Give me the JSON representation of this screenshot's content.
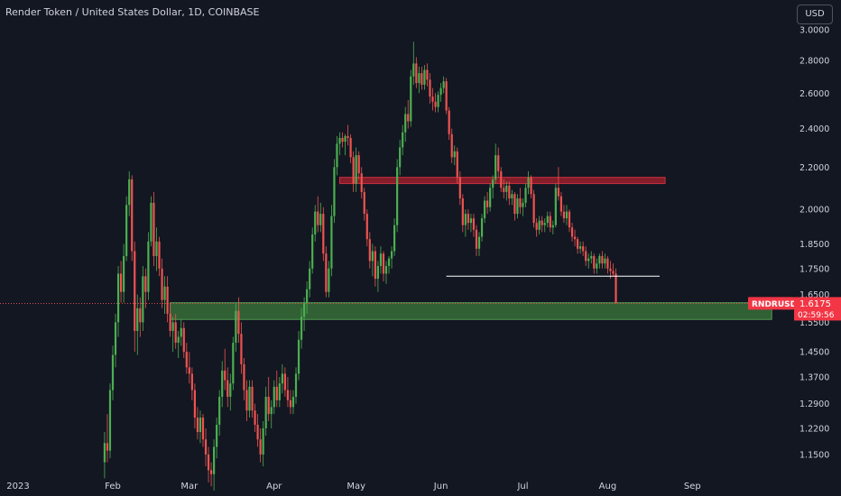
{
  "header": {
    "title": "Render Token / United States Dollar, 1D, COINBASE",
    "currency": "USD"
  },
  "colors": {
    "background": "#131722",
    "up": "#26a69a",
    "up_candle": "#4caf50",
    "down": "#ef5350",
    "resistance_zone": "#8b1e2b",
    "support_zone": "#3c7a3c",
    "trend_line": "#ffffff",
    "price_badge": "#f23645",
    "text": "#d1d4dc"
  },
  "price_badge": {
    "symbol": "RNDRUSD",
    "price": "1.6175",
    "countdown": "02:59:56"
  },
  "chart_data": {
    "type": "candlestick",
    "title": "Render Token / United States Dollar, 1D, COINBASE",
    "scale": "log",
    "ylim": [
      1.1,
      3.05
    ],
    "y_ticks": [
      "3.0000",
      "2.8000",
      "2.6000",
      "2.4000",
      "2.2000",
      "2.0000",
      "1.8500",
      "1.7500",
      "1.6500",
      "1.5500",
      "1.4500",
      "1.3700",
      "1.2900",
      "1.2200",
      "1.1500"
    ],
    "x_ticks": [
      "2023",
      "Feb",
      "Mar",
      "Apr",
      "May",
      "Jun",
      "Jul",
      "Aug",
      "Sep"
    ],
    "x_range": [
      "2023-01-20",
      "2023-09-30"
    ],
    "last_price": 1.6175,
    "annotations": [
      {
        "type": "zone",
        "role": "resistance",
        "y": [
          2.12,
          2.15
        ],
        "x": [
          "2023-04-25",
          "2023-08-22"
        ]
      },
      {
        "type": "zone",
        "role": "support",
        "y": [
          1.56,
          1.62
        ],
        "x": [
          "2023-02-22",
          "2023-09-30"
        ]
      },
      {
        "type": "hline",
        "role": "trend",
        "y": 1.72,
        "x": [
          "2023-06-03",
          "2023-08-20"
        ]
      }
    ],
    "candles": [
      [
        "2023-01-29",
        1.13,
        1.21,
        1.09,
        1.18
      ],
      [
        "2023-01-30",
        1.18,
        1.26,
        1.13,
        1.16
      ],
      [
        "2023-01-31",
        1.16,
        1.35,
        1.14,
        1.33
      ],
      [
        "2023-02-01",
        1.33,
        1.47,
        1.3,
        1.44
      ],
      [
        "2023-02-02",
        1.44,
        1.58,
        1.4,
        1.55
      ],
      [
        "2023-02-03",
        1.55,
        1.76,
        1.5,
        1.73
      ],
      [
        "2023-02-04",
        1.73,
        1.78,
        1.62,
        1.66
      ],
      [
        "2023-02-05",
        1.66,
        1.85,
        1.62,
        1.8
      ],
      [
        "2023-02-06",
        1.8,
        2.06,
        1.78,
        2.02
      ],
      [
        "2023-02-07",
        2.02,
        2.18,
        1.97,
        2.14
      ],
      [
        "2023-02-08",
        2.14,
        2.16,
        1.78,
        1.82
      ],
      [
        "2023-02-09",
        1.82,
        1.86,
        1.45,
        1.52
      ],
      [
        "2023-02-10",
        1.52,
        1.65,
        1.44,
        1.6
      ],
      [
        "2023-02-11",
        1.6,
        1.64,
        1.5,
        1.55
      ],
      [
        "2023-02-12",
        1.55,
        1.76,
        1.52,
        1.72
      ],
      [
        "2023-02-13",
        1.72,
        1.75,
        1.6,
        1.66
      ],
      [
        "2023-02-14",
        1.66,
        1.9,
        1.63,
        1.86
      ],
      [
        "2023-02-15",
        1.86,
        2.06,
        1.84,
        2.03
      ],
      [
        "2023-02-16",
        2.03,
        2.08,
        1.76,
        1.8
      ],
      [
        "2023-02-17",
        1.8,
        1.92,
        1.74,
        1.86
      ],
      [
        "2023-02-18",
        1.86,
        1.88,
        1.72,
        1.75
      ],
      [
        "2023-02-19",
        1.75,
        1.79,
        1.6,
        1.63
      ],
      [
        "2023-02-20",
        1.63,
        1.72,
        1.58,
        1.68
      ],
      [
        "2023-02-21",
        1.68,
        1.72,
        1.55,
        1.58
      ],
      [
        "2023-02-22",
        1.58,
        1.62,
        1.5,
        1.52
      ],
      [
        "2023-02-23",
        1.52,
        1.57,
        1.45,
        1.55
      ],
      [
        "2023-02-24",
        1.55,
        1.58,
        1.46,
        1.48
      ],
      [
        "2023-02-25",
        1.48,
        1.52,
        1.43,
        1.5
      ],
      [
        "2023-02-26",
        1.5,
        1.56,
        1.47,
        1.53
      ],
      [
        "2023-02-27",
        1.53,
        1.55,
        1.43,
        1.45
      ],
      [
        "2023-02-28",
        1.45,
        1.48,
        1.38,
        1.4
      ],
      [
        "2023-03-01",
        1.4,
        1.45,
        1.35,
        1.38
      ],
      [
        "2023-03-02",
        1.38,
        1.4,
        1.3,
        1.33
      ],
      [
        "2023-03-03",
        1.33,
        1.35,
        1.22,
        1.25
      ],
      [
        "2023-03-04",
        1.25,
        1.28,
        1.19,
        1.21
      ],
      [
        "2023-03-05",
        1.21,
        1.27,
        1.18,
        1.25
      ],
      [
        "2023-03-06",
        1.25,
        1.26,
        1.17,
        1.19
      ],
      [
        "2023-03-07",
        1.19,
        1.22,
        1.12,
        1.15
      ],
      [
        "2023-03-08",
        1.15,
        1.17,
        1.08,
        1.11
      ],
      [
        "2023-03-09",
        1.11,
        1.13,
        1.07,
        1.1
      ],
      [
        "2023-03-10",
        1.1,
        1.19,
        1.06,
        1.17
      ],
      [
        "2023-03-11",
        1.17,
        1.25,
        1.14,
        1.23
      ],
      [
        "2023-03-12",
        1.23,
        1.33,
        1.2,
        1.31
      ],
      [
        "2023-03-13",
        1.31,
        1.42,
        1.28,
        1.39
      ],
      [
        "2023-03-14",
        1.39,
        1.46,
        1.33,
        1.36
      ],
      [
        "2023-03-15",
        1.36,
        1.4,
        1.28,
        1.31
      ],
      [
        "2023-03-16",
        1.31,
        1.38,
        1.27,
        1.35
      ],
      [
        "2023-03-17",
        1.35,
        1.5,
        1.33,
        1.48
      ],
      [
        "2023-03-18",
        1.48,
        1.62,
        1.45,
        1.59
      ],
      [
        "2023-03-19",
        1.59,
        1.64,
        1.48,
        1.51
      ],
      [
        "2023-03-20",
        1.51,
        1.55,
        1.38,
        1.41
      ],
      [
        "2023-03-21",
        1.41,
        1.43,
        1.3,
        1.33
      ],
      [
        "2023-03-22",
        1.33,
        1.36,
        1.24,
        1.27
      ],
      [
        "2023-03-23",
        1.27,
        1.36,
        1.25,
        1.34
      ],
      [
        "2023-03-24",
        1.34,
        1.36,
        1.25,
        1.27
      ],
      [
        "2023-03-25",
        1.27,
        1.29,
        1.21,
        1.23
      ],
      [
        "2023-03-26",
        1.23,
        1.26,
        1.17,
        1.19
      ],
      [
        "2023-03-27",
        1.19,
        1.22,
        1.13,
        1.15
      ],
      [
        "2023-03-28",
        1.15,
        1.24,
        1.12,
        1.22
      ],
      [
        "2023-03-29",
        1.22,
        1.34,
        1.2,
        1.31
      ],
      [
        "2023-03-30",
        1.31,
        1.37,
        1.24,
        1.26
      ],
      [
        "2023-03-31",
        1.26,
        1.3,
        1.22,
        1.28
      ],
      [
        "2023-04-01",
        1.28,
        1.36,
        1.26,
        1.34
      ],
      [
        "2023-04-02",
        1.34,
        1.39,
        1.28,
        1.3
      ],
      [
        "2023-04-03",
        1.3,
        1.37,
        1.28,
        1.35
      ],
      [
        "2023-04-04",
        1.35,
        1.41,
        1.32,
        1.38
      ],
      [
        "2023-04-05",
        1.38,
        1.4,
        1.31,
        1.33
      ],
      [
        "2023-04-06",
        1.33,
        1.37,
        1.28,
        1.3
      ],
      [
        "2023-04-07",
        1.3,
        1.33,
        1.26,
        1.28
      ],
      [
        "2023-04-08",
        1.28,
        1.33,
        1.26,
        1.31
      ],
      [
        "2023-04-09",
        1.31,
        1.4,
        1.29,
        1.38
      ],
      [
        "2023-04-10",
        1.38,
        1.52,
        1.36,
        1.49
      ],
      [
        "2023-04-11",
        1.49,
        1.6,
        1.46,
        1.57
      ],
      [
        "2023-04-12",
        1.57,
        1.64,
        1.52,
        1.62
      ],
      [
        "2023-04-13",
        1.62,
        1.7,
        1.58,
        1.67
      ],
      [
        "2023-04-14",
        1.67,
        1.78,
        1.64,
        1.75
      ],
      [
        "2023-04-15",
        1.75,
        1.92,
        1.73,
        1.89
      ],
      [
        "2023-04-16",
        1.89,
        2.02,
        1.86,
        1.99
      ],
      [
        "2023-04-17",
        1.99,
        2.06,
        1.9,
        1.93
      ],
      [
        "2023-04-18",
        1.93,
        2.03,
        1.9,
        1.98
      ],
      [
        "2023-04-19",
        1.98,
        2.01,
        1.78,
        1.81
      ],
      [
        "2023-04-20",
        1.81,
        1.84,
        1.64,
        1.66
      ],
      [
        "2023-04-21",
        1.66,
        1.78,
        1.64,
        1.75
      ],
      [
        "2023-04-22",
        1.75,
        2.02,
        1.72,
        1.97
      ],
      [
        "2023-04-23",
        1.97,
        2.24,
        1.94,
        2.2
      ],
      [
        "2023-04-24",
        2.2,
        2.36,
        2.16,
        2.32
      ],
      [
        "2023-04-25",
        2.32,
        2.38,
        2.26,
        2.35
      ],
      [
        "2023-04-26",
        2.35,
        2.38,
        2.3,
        2.33
      ],
      [
        "2023-04-27",
        2.33,
        2.37,
        2.26,
        2.36
      ],
      [
        "2023-04-28",
        2.36,
        2.42,
        2.31,
        2.35
      ],
      [
        "2023-04-29",
        2.35,
        2.37,
        2.22,
        2.25
      ],
      [
        "2023-04-30",
        2.25,
        2.28,
        2.08,
        2.12
      ],
      [
        "2023-05-01",
        2.12,
        2.3,
        2.08,
        2.26
      ],
      [
        "2023-05-02",
        2.26,
        2.28,
        2.14,
        2.17
      ],
      [
        "2023-05-03",
        2.17,
        2.2,
        2.05,
        2.08
      ],
      [
        "2023-05-04",
        2.08,
        2.1,
        1.95,
        1.98
      ],
      [
        "2023-05-05",
        1.98,
        2.0,
        1.84,
        1.87
      ],
      [
        "2023-05-06",
        1.87,
        1.9,
        1.75,
        1.78
      ],
      [
        "2023-05-07",
        1.78,
        1.85,
        1.72,
        1.82
      ],
      [
        "2023-05-08",
        1.82,
        1.84,
        1.68,
        1.71
      ],
      [
        "2023-05-09",
        1.71,
        1.78,
        1.66,
        1.76
      ],
      [
        "2023-05-10",
        1.76,
        1.84,
        1.73,
        1.81
      ],
      [
        "2023-05-11",
        1.81,
        1.82,
        1.7,
        1.73
      ],
      [
        "2023-05-12",
        1.73,
        1.78,
        1.69,
        1.76
      ],
      [
        "2023-05-13",
        1.76,
        1.8,
        1.73,
        1.79
      ],
      [
        "2023-05-14",
        1.79,
        1.84,
        1.75,
        1.82
      ],
      [
        "2023-05-15",
        1.82,
        1.96,
        1.8,
        1.93
      ],
      [
        "2023-05-16",
        1.93,
        2.24,
        1.9,
        2.2
      ],
      [
        "2023-05-17",
        2.2,
        2.34,
        2.16,
        2.3
      ],
      [
        "2023-05-18",
        2.3,
        2.42,
        2.26,
        2.38
      ],
      [
        "2023-05-19",
        2.38,
        2.52,
        2.33,
        2.48
      ],
      [
        "2023-05-20",
        2.48,
        2.56,
        2.4,
        2.44
      ],
      [
        "2023-05-21",
        2.44,
        2.74,
        2.41,
        2.7
      ],
      [
        "2023-05-22",
        2.7,
        2.92,
        2.65,
        2.78
      ],
      [
        "2023-05-23",
        2.78,
        2.82,
        2.63,
        2.66
      ],
      [
        "2023-05-24",
        2.66,
        2.76,
        2.6,
        2.72
      ],
      [
        "2023-05-25",
        2.72,
        2.76,
        2.62,
        2.65
      ],
      [
        "2023-05-26",
        2.65,
        2.77,
        2.62,
        2.74
      ],
      [
        "2023-05-27",
        2.74,
        2.78,
        2.64,
        2.68
      ],
      [
        "2023-05-28",
        2.68,
        2.72,
        2.54,
        2.58
      ],
      [
        "2023-05-29",
        2.58,
        2.63,
        2.5,
        2.55
      ],
      [
        "2023-05-30",
        2.55,
        2.6,
        2.49,
        2.52
      ],
      [
        "2023-05-31",
        2.52,
        2.61,
        2.49,
        2.59
      ],
      [
        "2023-06-01",
        2.59,
        2.66,
        2.55,
        2.63
      ],
      [
        "2023-06-02",
        2.63,
        2.7,
        2.6,
        2.67
      ],
      [
        "2023-06-03",
        2.67,
        2.69,
        2.48,
        2.5
      ],
      [
        "2023-06-04",
        2.5,
        2.52,
        2.34,
        2.37
      ],
      [
        "2023-06-05",
        2.37,
        2.4,
        2.22,
        2.25
      ],
      [
        "2023-06-06",
        2.25,
        2.31,
        2.21,
        2.28
      ],
      [
        "2023-06-07",
        2.28,
        2.3,
        2.12,
        2.15
      ],
      [
        "2023-06-08",
        2.15,
        2.18,
        2.02,
        2.05
      ],
      [
        "2023-06-09",
        2.05,
        2.07,
        1.9,
        1.93
      ],
      [
        "2023-06-10",
        1.93,
        2.0,
        1.88,
        1.98
      ],
      [
        "2023-06-11",
        1.98,
        2.0,
        1.91,
        1.94
      ],
      [
        "2023-06-12",
        1.94,
        1.98,
        1.9,
        1.96
      ],
      [
        "2023-06-13",
        1.96,
        1.98,
        1.88,
        1.91
      ],
      [
        "2023-06-14",
        1.91,
        1.93,
        1.8,
        1.83
      ],
      [
        "2023-06-15",
        1.83,
        1.9,
        1.8,
        1.88
      ],
      [
        "2023-06-16",
        1.88,
        1.98,
        1.86,
        1.96
      ],
      [
        "2023-06-17",
        1.96,
        2.06,
        1.94,
        2.04
      ],
      [
        "2023-06-18",
        2.04,
        2.08,
        1.98,
        2.01
      ],
      [
        "2023-06-19",
        2.01,
        2.12,
        1.99,
        2.1
      ],
      [
        "2023-06-20",
        2.1,
        2.16,
        2.05,
        2.14
      ],
      [
        "2023-06-21",
        2.14,
        2.32,
        2.12,
        2.26
      ],
      [
        "2023-06-22",
        2.26,
        2.3,
        2.15,
        2.18
      ],
      [
        "2023-06-23",
        2.18,
        2.2,
        2.08,
        2.1
      ],
      [
        "2023-06-24",
        2.1,
        2.14,
        2.05,
        2.08
      ],
      [
        "2023-06-25",
        2.08,
        2.13,
        2.04,
        2.11
      ],
      [
        "2023-06-26",
        2.11,
        2.13,
        2.02,
        2.05
      ],
      [
        "2023-06-27",
        2.05,
        2.09,
        2.02,
        2.07
      ],
      [
        "2023-06-28",
        2.07,
        2.08,
        1.95,
        1.98
      ],
      [
        "2023-06-29",
        1.98,
        2.07,
        1.96,
        2.05
      ],
      [
        "2023-06-30",
        2.05,
        2.1,
        1.98,
        2.01
      ],
      [
        "2023-07-01",
        2.01,
        2.05,
        1.97,
        2.03
      ],
      [
        "2023-07-02",
        2.03,
        2.12,
        2.01,
        2.1
      ],
      [
        "2023-07-03",
        2.1,
        2.18,
        2.07,
        2.15
      ],
      [
        "2023-07-04",
        2.15,
        2.16,
        2.05,
        2.07
      ],
      [
        "2023-07-05",
        2.07,
        2.09,
        1.92,
        1.94
      ],
      [
        "2023-07-06",
        1.94,
        1.96,
        1.88,
        1.91
      ],
      [
        "2023-07-07",
        1.91,
        1.97,
        1.89,
        1.95
      ],
      [
        "2023-07-08",
        1.95,
        1.97,
        1.9,
        1.93
      ],
      [
        "2023-07-09",
        1.93,
        1.96,
        1.9,
        1.94
      ],
      [
        "2023-07-10",
        1.94,
        1.99,
        1.92,
        1.97
      ],
      [
        "2023-07-11",
        1.97,
        1.99,
        1.9,
        1.92
      ],
      [
        "2023-07-12",
        1.92,
        1.95,
        1.89,
        1.93
      ],
      [
        "2023-07-13",
        1.93,
        2.12,
        1.92,
        2.1
      ],
      [
        "2023-07-14",
        2.1,
        2.2,
        2.04,
        2.06
      ],
      [
        "2023-07-15",
        2.06,
        2.08,
        1.97,
        1.99
      ],
      [
        "2023-07-16",
        1.99,
        2.02,
        1.94,
        1.96
      ],
      [
        "2023-07-17",
        1.96,
        2.02,
        1.93,
        1.99
      ],
      [
        "2023-07-18",
        1.99,
        2.0,
        1.9,
        1.92
      ],
      [
        "2023-07-19",
        1.92,
        1.94,
        1.86,
        1.88
      ],
      [
        "2023-07-20",
        1.88,
        1.91,
        1.84,
        1.87
      ],
      [
        "2023-07-21",
        1.87,
        1.88,
        1.81,
        1.83
      ],
      [
        "2023-07-22",
        1.83,
        1.86,
        1.81,
        1.84
      ],
      [
        "2023-07-23",
        1.84,
        1.86,
        1.8,
        1.82
      ],
      [
        "2023-07-24",
        1.82,
        1.84,
        1.76,
        1.78
      ],
      [
        "2023-07-25",
        1.78,
        1.81,
        1.75,
        1.79
      ],
      [
        "2023-07-26",
        1.79,
        1.82,
        1.77,
        1.8
      ],
      [
        "2023-07-27",
        1.8,
        1.81,
        1.73,
        1.75
      ],
      [
        "2023-07-28",
        1.75,
        1.79,
        1.73,
        1.77
      ],
      [
        "2023-07-29",
        1.77,
        1.81,
        1.75,
        1.8
      ],
      [
        "2023-07-30",
        1.8,
        1.82,
        1.75,
        1.77
      ],
      [
        "2023-07-31",
        1.77,
        1.81,
        1.75,
        1.79
      ],
      [
        "2023-08-01",
        1.79,
        1.8,
        1.73,
        1.75
      ],
      [
        "2023-08-02",
        1.75,
        1.78,
        1.71,
        1.74
      ],
      [
        "2023-08-03",
        1.74,
        1.77,
        1.72,
        1.73
      ],
      [
        "2023-08-04",
        1.73,
        1.75,
        1.62,
        1.6175
      ]
    ]
  }
}
